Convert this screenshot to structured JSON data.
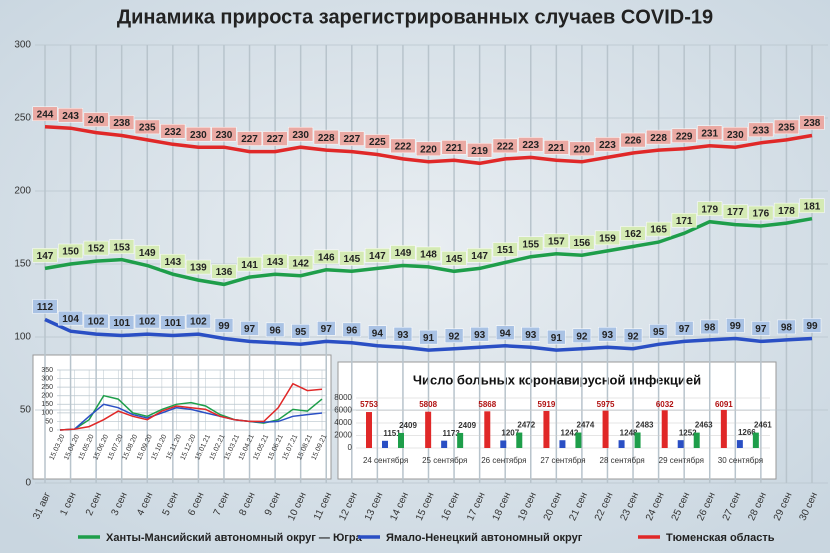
{
  "chart_data": [
    {
      "type": "line",
      "title": "Динамика прироста зарегистрированных случаев COVID-19",
      "categories": [
        "31 авг",
        "1 сен",
        "2 сен",
        "3 сен",
        "4 сен",
        "5 сен",
        "6 сен",
        "7 сен",
        "8 сен",
        "9 сен",
        "10 сен",
        "11 сен",
        "12 сен",
        "13 сен",
        "14 сен",
        "15 сен",
        "16 сен",
        "17 сен",
        "18 сен",
        "19 сен",
        "20 сен",
        "21 сен",
        "22 сен",
        "23 сен",
        "24 сен",
        "25 сен",
        "26 сен",
        "27 сен",
        "28 сен",
        "29 сен",
        "30 сен"
      ],
      "series": [
        {
          "name": "Ханты-Мансийский автономный округ — Югра",
          "color": "#1e9e4a",
          "label_color": "#d4eab4",
          "values": [
            147,
            150,
            152,
            153,
            149,
            143,
            139,
            136,
            141,
            143,
            142,
            146,
            145,
            147,
            149,
            148,
            145,
            147,
            151,
            155,
            157,
            156,
            159,
            162,
            165,
            171,
            179,
            177,
            176,
            178,
            181
          ]
        },
        {
          "name": "Ямало-Ненецкий автономный округ",
          "color": "#2a4fc4",
          "label_color": "#a9c2e4",
          "values": [
            112,
            104,
            102,
            101,
            102,
            101,
            102,
            99,
            97,
            96,
            95,
            97,
            96,
            94,
            93,
            91,
            92,
            93,
            94,
            93,
            91,
            92,
            93,
            92,
            95,
            97,
            98,
            99,
            97,
            98,
            99
          ]
        },
        {
          "name": "Тюменская область",
          "color": "#e02828",
          "label_color": "#eaa9a3",
          "values": [
            244,
            243,
            240,
            238,
            235,
            232,
            230,
            230,
            227,
            227,
            230,
            228,
            227,
            225,
            222,
            220,
            221,
            219,
            222,
            223,
            221,
            220,
            223,
            226,
            228,
            229,
            231,
            230,
            233,
            235,
            238
          ]
        }
      ],
      "ylim": [
        0,
        300
      ],
      "yticks": [
        0,
        50,
        100,
        150,
        200,
        250,
        300
      ],
      "grid": true,
      "legend": "bottom"
    },
    {
      "type": "line",
      "categories": [
        "15.03.20",
        "15.04.20",
        "15.05.20",
        "15.06.20",
        "15.07.20",
        "15.08.20",
        "15.09.20",
        "15.10.20",
        "15.11.20",
        "15.12.20",
        "15.01.21",
        "15.02.21",
        "15.03.21",
        "15.04.21",
        "15.05.21",
        "15.06.21",
        "15.07.21",
        "15.08.21",
        "15.09.21"
      ],
      "series": [
        {
          "color": "#1e9e4a",
          "values": [
            0,
            5,
            60,
            200,
            180,
            100,
            80,
            120,
            150,
            160,
            140,
            90,
            60,
            50,
            40,
            60,
            120,
            110,
            180
          ]
        },
        {
          "color": "#2a4fc4",
          "values": [
            0,
            5,
            80,
            150,
            130,
            90,
            70,
            100,
            130,
            120,
            100,
            80,
            60,
            50,
            45,
            50,
            80,
            90,
            99
          ]
        },
        {
          "color": "#e02828",
          "values": [
            0,
            5,
            20,
            60,
            110,
            80,
            60,
            110,
            140,
            130,
            120,
            80,
            60,
            50,
            50,
            130,
            270,
            230,
            238
          ]
        }
      ],
      "ylim": [
        0,
        350
      ],
      "yticks": [
        0,
        50,
        100,
        150,
        200,
        250,
        300,
        350
      ],
      "grid": true
    },
    {
      "type": "bar",
      "title": "Число больных коронавирусной  инфекцией",
      "categories": [
        "24 сентября",
        "25 сентября",
        "26 сентября",
        "27 сентября",
        "28 сентября",
        "29 сентября",
        "30 сентября"
      ],
      "series": [
        {
          "color": "#e02828",
          "values": [
            5753,
            5808,
            5868,
            5919,
            5975,
            6032,
            6091
          ]
        },
        {
          "color": "#2a4fc4",
          "values": [
            1151,
            1173,
            1207,
            1242,
            1248,
            1252,
            1266
          ]
        },
        {
          "color": "#1e9e4a",
          "values": [
            2409,
            2409,
            2472,
            2474,
            2483,
            2463,
            2461
          ]
        }
      ],
      "ylim": [
        0,
        8000
      ],
      "yticks": [
        0,
        2000,
        4000,
        6000,
        8000
      ],
      "grid": true
    }
  ]
}
